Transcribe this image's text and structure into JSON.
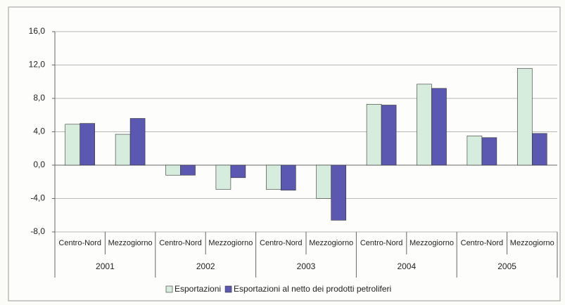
{
  "chart_data": {
    "type": "bar",
    "categories": [
      "Centro-Nord",
      "Mezzogiorno",
      "Centro-Nord",
      "Mezzogiorno",
      "Centro-Nord",
      "Mezzogiorno",
      "Centro-Nord",
      "Mezzogiorno",
      "Centro-Nord",
      "Mezzogiorno"
    ],
    "groups": [
      "2001",
      "2002",
      "2003",
      "2004",
      "2005"
    ],
    "series": [
      {
        "name": "Esportazioni",
        "color": "#d6ecdc",
        "values": [
          4.9,
          3.7,
          -1.2,
          -2.9,
          -2.9,
          -4.0,
          7.3,
          9.7,
          3.5,
          11.6
        ]
      },
      {
        "name": "Esportazioni al netto dei prodotti petroliferi",
        "color": "#5a58b0",
        "values": [
          5.0,
          5.6,
          -1.2,
          -1.5,
          -3.0,
          -6.6,
          7.2,
          9.2,
          3.3,
          3.8
        ]
      }
    ],
    "ylim": [
      -8,
      16
    ],
    "yticks": [
      {
        "value": -8,
        "label": "-8,0"
      },
      {
        "value": -4,
        "label": "-4,0"
      },
      {
        "value": 0,
        "label": "0,0"
      },
      {
        "value": 4,
        "label": "4,0"
      },
      {
        "value": 8,
        "label": "8,0"
      },
      {
        "value": 12,
        "label": "12,0"
      },
      {
        "value": 16,
        "label": "16,0"
      }
    ],
    "grid": true,
    "legend": "bottom"
  }
}
